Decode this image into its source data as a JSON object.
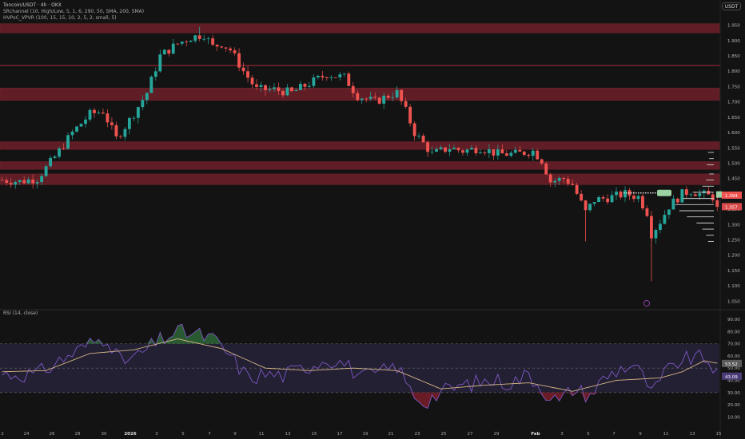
{
  "header": {
    "title": "Toncoin/USDT · 4h · OKX",
    "indicator1": "SRchannel (10, High/Low, 5, 1, 6, 290, 50, SMA, 200, SMA)",
    "indicator2": "HVPoC_VPVR (100, 15, 15, 10, 2, 5, 2, small, 5)",
    "currency": "USDT"
  },
  "rsi_panel": {
    "label": "RSI (14, close)"
  },
  "colors": {
    "background": "#131313",
    "bull": "#26a69a",
    "bear": "#ef5350",
    "zone": "#6e1f29",
    "rsi_line": "#7e57c2",
    "rsi_ma": "#d4b483",
    "rsi_band": "#2a2540"
  },
  "chart_data": [
    {
      "type": "candlestick",
      "title": "Toncoin/USDT",
      "timeframe": "4h",
      "exchange": "OKX",
      "x_ticks": [
        "2",
        "24",
        "26",
        "28",
        "30",
        "2026",
        "3",
        "5",
        "7",
        "9",
        "11",
        "13",
        "15",
        "17",
        "19",
        "21",
        "23",
        "25",
        "27",
        "29",
        "Feb",
        "3",
        "5",
        "7",
        "9",
        "11",
        "13",
        "15"
      ],
      "y_ticks": [
        "1.950",
        "1.900",
        "1.850",
        "1.800",
        "1.750",
        "1.700",
        "1.650",
        "1.600",
        "1.550",
        "1.500",
        "1.450",
        "1.400",
        "1.350",
        "1.300",
        "1.250",
        "1.200",
        "1.150",
        "1.100",
        "1.050"
      ],
      "ylim": [
        1.03,
        1.975
      ],
      "last_price_labels": [
        "1.394",
        "1.357"
      ],
      "sr_zones": [
        [
          1.925,
          1.955
        ],
        [
          1.817,
          1.82
        ],
        [
          1.705,
          1.745
        ],
        [
          1.545,
          1.57
        ],
        [
          1.48,
          1.505
        ],
        [
          1.43,
          1.465
        ]
      ],
      "path": [
        [
          0,
          1.445
        ],
        [
          4,
          1.44
        ],
        [
          8,
          1.45
        ],
        [
          12,
          1.52
        ],
        [
          16,
          1.6
        ],
        [
          20,
          1.66
        ],
        [
          23,
          1.67
        ],
        [
          26,
          1.58
        ],
        [
          29,
          1.64
        ],
        [
          33,
          1.73
        ],
        [
          36,
          1.85
        ],
        [
          40,
          1.89
        ],
        [
          43,
          1.91
        ],
        [
          46,
          1.92
        ],
        [
          48,
          1.88
        ],
        [
          50,
          1.89
        ],
        [
          52,
          1.87
        ],
        [
          55,
          1.8
        ],
        [
          58,
          1.74
        ],
        [
          62,
          1.74
        ],
        [
          66,
          1.73
        ],
        [
          70,
          1.76
        ],
        [
          74,
          1.79
        ],
        [
          78,
          1.78
        ],
        [
          81,
          1.72
        ],
        [
          85,
          1.7
        ],
        [
          88,
          1.72
        ],
        [
          90,
          1.73
        ],
        [
          92,
          1.67
        ],
        [
          94,
          1.6
        ],
        [
          98,
          1.53
        ],
        [
          102,
          1.55
        ],
        [
          105,
          1.54
        ],
        [
          109,
          1.55
        ],
        [
          113,
          1.53
        ],
        [
          117,
          1.53
        ],
        [
          121,
          1.54
        ],
        [
          123,
          1.51
        ],
        [
          125,
          1.44
        ],
        [
          128,
          1.45
        ],
        [
          130,
          1.43
        ],
        [
          133,
          1.34
        ],
        [
          135,
          1.38
        ],
        [
          139,
          1.39
        ],
        [
          142,
          1.4
        ],
        [
          145,
          1.39
        ],
        [
          147,
          1.34
        ],
        [
          148,
          1.27
        ],
        [
          150,
          1.31
        ],
        [
          152,
          1.36
        ],
        [
          155,
          1.4
        ],
        [
          157,
          1.41
        ],
        [
          159,
          1.4
        ],
        [
          162,
          1.39
        ],
        [
          163,
          1.35
        ]
      ],
      "volume_profile_levels": [
        1.535,
        1.515,
        1.495,
        1.465,
        1.445,
        1.425,
        1.405,
        1.385,
        1.365,
        1.345,
        1.325,
        1.305,
        1.285,
        1.265,
        1.245
      ],
      "volume_profile_values": [
        0.15,
        0.12,
        0.18,
        0.12,
        0.2,
        0.3,
        0.55,
        0.8,
        1.0,
        0.9,
        0.7,
        0.45,
        0.3,
        0.2,
        0.15
      ]
    },
    {
      "type": "line",
      "title": "RSI (14, close)",
      "y_ticks": [
        "90.00",
        "80.00",
        "70.00",
        "60.00",
        "50.00",
        "40.00",
        "30.00",
        "20.00",
        "10.00"
      ],
      "ylim": [
        5,
        92
      ],
      "overbought": 70,
      "oversold": 30,
      "midline": 50,
      "last_values": [
        "53.52",
        "43.09"
      ],
      "rsi_path": [
        [
          0,
          45
        ],
        [
          8,
          45
        ],
        [
          14,
          58
        ],
        [
          20,
          70
        ],
        [
          24,
          76
        ],
        [
          27,
          55
        ],
        [
          31,
          60
        ],
        [
          36,
          73
        ],
        [
          40,
          80
        ],
        [
          44,
          78
        ],
        [
          48,
          74
        ],
        [
          52,
          60
        ],
        [
          56,
          42
        ],
        [
          60,
          45
        ],
        [
          64,
          44
        ],
        [
          70,
          52
        ],
        [
          74,
          58
        ],
        [
          78,
          54
        ],
        [
          82,
          42
        ],
        [
          86,
          46
        ],
        [
          90,
          52
        ],
        [
          93,
          32
        ],
        [
          96,
          22
        ],
        [
          100,
          30
        ],
        [
          104,
          35
        ],
        [
          108,
          38
        ],
        [
          112,
          40
        ],
        [
          116,
          38
        ],
        [
          120,
          45
        ],
        [
          124,
          30
        ],
        [
          127,
          22
        ],
        [
          130,
          33
        ],
        [
          134,
          28
        ],
        [
          137,
          41
        ],
        [
          141,
          50
        ],
        [
          144,
          53
        ],
        [
          147,
          38
        ],
        [
          148,
          28
        ],
        [
          151,
          45
        ],
        [
          154,
          55
        ],
        [
          157,
          58
        ],
        [
          160,
          58
        ],
        [
          162,
          52
        ],
        [
          163,
          43
        ]
      ],
      "ma_path": [
        [
          0,
          47
        ],
        [
          10,
          48
        ],
        [
          20,
          62
        ],
        [
          30,
          65
        ],
        [
          40,
          74
        ],
        [
          50,
          66
        ],
        [
          60,
          50
        ],
        [
          70,
          48
        ],
        [
          80,
          50
        ],
        [
          90,
          48
        ],
        [
          100,
          33
        ],
        [
          110,
          36
        ],
        [
          120,
          38
        ],
        [
          130,
          31
        ],
        [
          140,
          40
        ],
        [
          150,
          42
        ],
        [
          155,
          47
        ],
        [
          160,
          56
        ],
        [
          163,
          54
        ]
      ]
    }
  ]
}
